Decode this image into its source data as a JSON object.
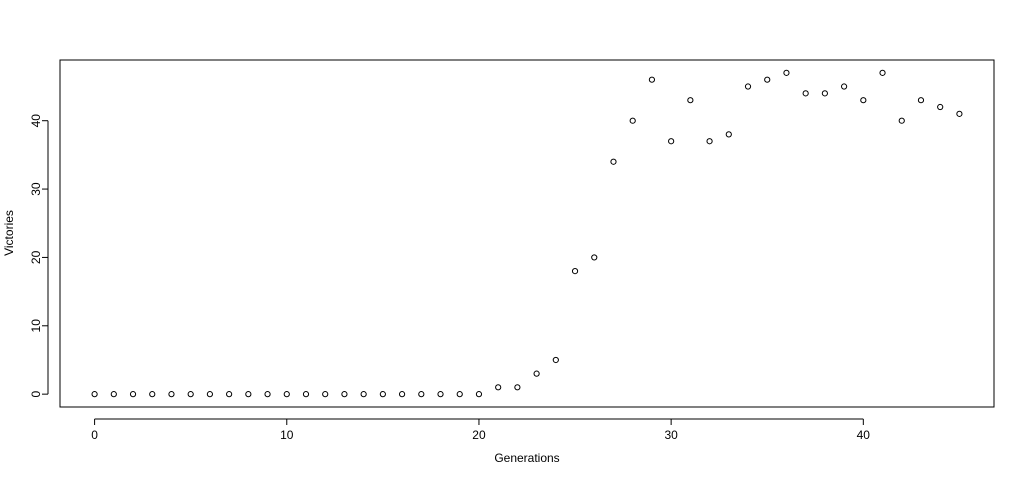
{
  "chart_data": {
    "type": "scatter",
    "xlabel": "Generations",
    "ylabel": "Victories",
    "xlim": [
      -1.8,
      46.8
    ],
    "ylim": [
      -1.88,
      48.88
    ],
    "xticks": [
      0,
      10,
      20,
      30,
      40
    ],
    "yticks": [
      0,
      10,
      20,
      30,
      40
    ],
    "x": [
      0,
      1,
      2,
      3,
      4,
      5,
      6,
      7,
      8,
      9,
      10,
      11,
      12,
      13,
      14,
      15,
      16,
      17,
      18,
      19,
      20,
      21,
      22,
      23,
      24,
      25,
      26,
      27,
      28,
      29,
      30,
      31,
      32,
      33,
      34,
      35,
      36,
      37,
      38,
      39,
      40,
      41,
      42,
      43,
      44,
      45
    ],
    "y": [
      0,
      0,
      0,
      0,
      0,
      0,
      0,
      0,
      0,
      0,
      0,
      0,
      0,
      0,
      0,
      0,
      0,
      0,
      0,
      0,
      0,
      1,
      1,
      3,
      5,
      18,
      20,
      34,
      40,
      46,
      37,
      43,
      37,
      38,
      45,
      46,
      47,
      44,
      44,
      45,
      43,
      47,
      40,
      43,
      42,
      41
    ],
    "grid": false,
    "legend": "none",
    "marker": "open-circle",
    "color": "#000000"
  }
}
